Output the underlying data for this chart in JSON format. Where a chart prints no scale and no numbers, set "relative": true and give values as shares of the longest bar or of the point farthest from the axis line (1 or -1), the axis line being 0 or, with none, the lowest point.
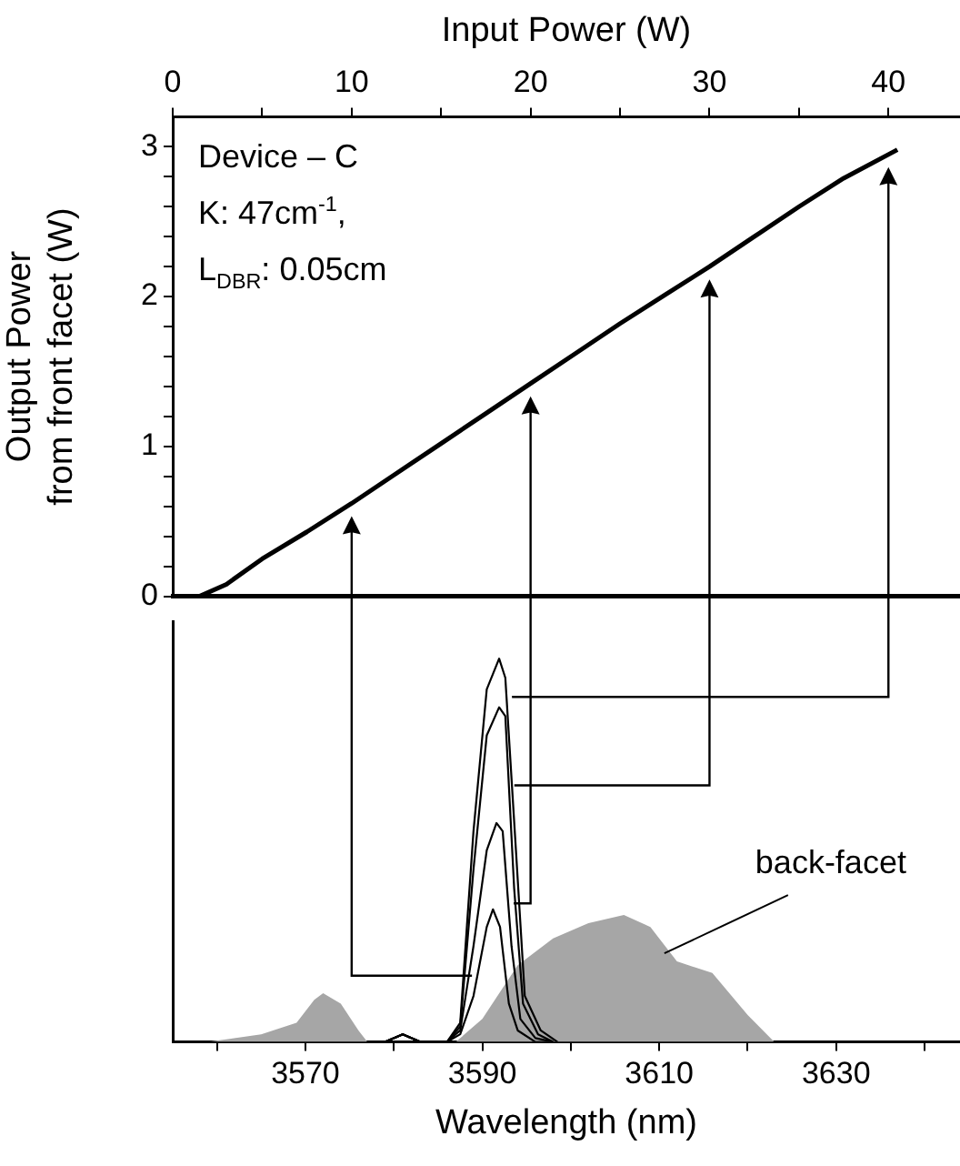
{
  "chart_data": [
    {
      "type": "line",
      "xlabel": "Input Power (W)",
      "ylabel": "Output Power\nfrom front facet (W)",
      "x": [
        0,
        1.5,
        3,
        5,
        7.5,
        10,
        12.5,
        15,
        17.5,
        20,
        22.5,
        25,
        27.5,
        30,
        32.5,
        35,
        37.5,
        40.5
      ],
      "values": [
        0,
        0,
        0.08,
        0.25,
        0.43,
        0.62,
        0.82,
        1.02,
        1.22,
        1.42,
        1.62,
        1.82,
        2.01,
        2.2,
        2.4,
        2.6,
        2.79,
        2.98
      ],
      "color": "#000000",
      "xlim": [
        0,
        44
      ],
      "xticks": [
        0,
        {
          "value": 5,
          "label": null
        },
        10,
        {
          "value": 15,
          "label": null
        },
        20,
        {
          "value": 25,
          "label": null
        },
        30,
        {
          "value": 35,
          "label": null
        },
        40
      ],
      "ylim": [
        0,
        3.2
      ],
      "yticks": [
        0,
        {
          "value": 0.2,
          "label": null
        },
        {
          "value": 0.4,
          "label": null
        },
        {
          "value": 0.6,
          "label": null
        },
        {
          "value": 0.8,
          "label": null
        },
        1,
        {
          "value": 1.2,
          "label": null
        },
        {
          "value": 1.4,
          "label": null
        },
        {
          "value": 1.6,
          "label": null
        },
        {
          "value": 1.8,
          "label": null
        },
        2,
        {
          "value": 2.2,
          "label": null
        },
        {
          "value": 2.4,
          "label": null
        },
        {
          "value": 2.6,
          "label": null
        },
        {
          "value": 2.8,
          "label": null
        },
        3
      ],
      "grid": false,
      "legend": false,
      "marker": "none",
      "annotations": [
        "Device – C",
        "K: 47cm$^{-1}$,",
        "L$_{DBR}$: 0.05cm"
      ]
    },
    {
      "type": "line",
      "xlabel": "Wavelength (nm)",
      "relative": true,
      "xlim": [
        3555,
        3644
      ],
      "xticks": [
        {
          "value": 3560,
          "label": null
        },
        3570,
        {
          "value": 3580,
          "label": null
        },
        3590,
        {
          "value": 3600,
          "label": null
        },
        3610,
        {
          "value": 3620,
          "label": null
        },
        3630,
        {
          "value": 3640,
          "label": null
        }
      ],
      "series": [
        {
          "type": "area",
          "color": "#a6a6a6",
          "x": [
            3559,
            3565,
            3569,
            3571,
            3572,
            3574,
            3576,
            3577,
            3587,
            3590,
            3594,
            3598,
            3602,
            3606,
            3609,
            3612,
            3616,
            3620,
            3623
          ],
          "values": [
            0,
            0.02,
            0.05,
            0.11,
            0.127,
            0.1,
            0.03,
            0,
            0,
            0.06,
            0.2,
            0.27,
            0.31,
            0.331,
            0.3,
            0.21,
            0.18,
            0.07,
            0
          ]
        },
        {
          "type": "line",
          "color": "#000000",
          "x": [
            3579,
            3581,
            3583,
            3586,
            3587.5,
            3589,
            3590.5,
            3591.2,
            3592,
            3593,
            3594,
            3596,
            3598
          ],
          "values": [
            0,
            0.02,
            0,
            0,
            0.02,
            0.12,
            0.3,
            0.346,
            0.3,
            0.1,
            0.03,
            0,
            0
          ]
        },
        {
          "type": "line",
          "color": "#000000",
          "x": [
            3579,
            3581,
            3583,
            3586,
            3587.5,
            3589,
            3590.5,
            3591.6,
            3592.3,
            3593.3,
            3594.3,
            3596,
            3598
          ],
          "values": [
            0,
            0.02,
            0,
            0,
            0.03,
            0.25,
            0.5,
            0.571,
            0.55,
            0.25,
            0.06,
            0.01,
            0
          ]
        },
        {
          "type": "line",
          "color": "#000000",
          "x": [
            3579,
            3581,
            3583,
            3586,
            3587.5,
            3589,
            3590.5,
            3591.9,
            3592.6,
            3593.6,
            3594.6,
            3596.3,
            3598
          ],
          "values": [
            0,
            0.02,
            0,
            0,
            0.04,
            0.45,
            0.8,
            0.873,
            0.85,
            0.4,
            0.1,
            0.02,
            0
          ]
        },
        {
          "type": "line",
          "color": "#000000",
          "x": [
            3579,
            3581,
            3583,
            3586,
            3587.5,
            3589,
            3590.5,
            3591.9,
            3592.6,
            3593.8,
            3594.8,
            3596.6,
            3598.5
          ],
          "values": [
            0,
            0.02,
            0,
            0,
            0.05,
            0.55,
            0.92,
            1,
            0.95,
            0.5,
            0.12,
            0.03,
            0
          ]
        }
      ],
      "grid": false,
      "legend": false,
      "marker": "none",
      "annotations": [
        "back-facet"
      ]
    }
  ]
}
